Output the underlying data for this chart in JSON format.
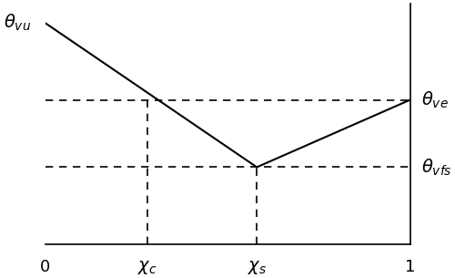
{
  "x_min": 0.0,
  "x_max": 1.0,
  "chi_c": 0.28,
  "chi_s": 0.58,
  "theta_vu": 0.92,
  "theta_ve": 0.6,
  "theta_vfs": 0.32,
  "y_min": 0.0,
  "y_max": 1.0,
  "line_color": "black",
  "dashed_color": "black",
  "bg_color": "white",
  "label_theta_vu": "$\\theta_{vu}$",
  "label_theta_ve": "$\\theta_{ve}$",
  "label_theta_vfs": "$\\theta_{vfs}$",
  "label_chi_c": "$\\chi_c$",
  "label_chi_s": "$\\chi_s$",
  "label_0": "0",
  "label_1": "1",
  "fontsize_labels": 14,
  "fontsize_ticks": 13
}
